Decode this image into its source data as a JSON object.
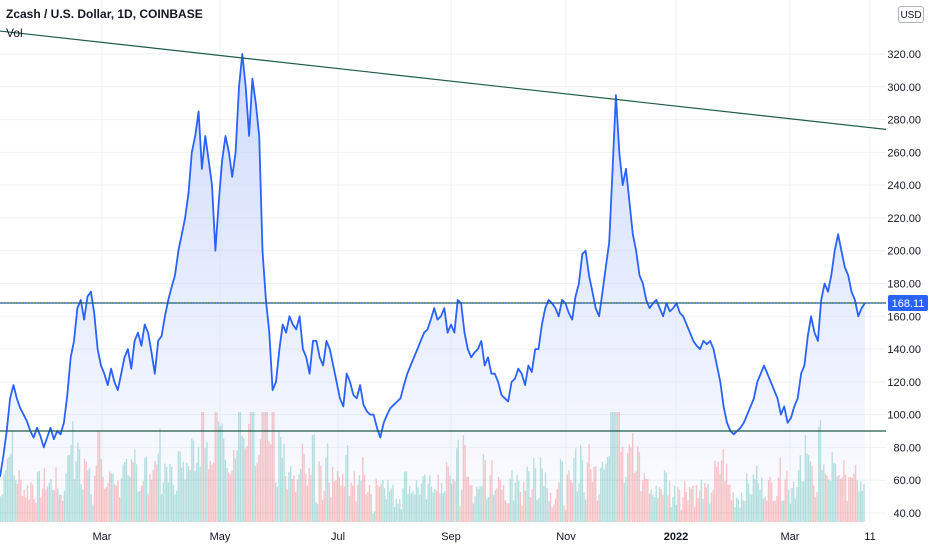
{
  "header": {
    "title": "Zcash / U.S. Dollar, 1D, COINBASE",
    "volume_label": "Vol",
    "currency_button": "USD"
  },
  "colors": {
    "price_line": "#2962ff",
    "area_fill_top": "#c9d6fb",
    "trendline": "#1f5c4a",
    "horizontal_line": "#1f5c4a",
    "last_price_badge": "#2962ff",
    "volume_up": "#26a69a",
    "volume_down": "#ef5350",
    "grid": "#eef0f3",
    "axis_text": "#131722"
  },
  "chart_data": {
    "type": "line",
    "title": "Zcash / U.S. Dollar, 1D, COINBASE",
    "xlabel": "",
    "ylabel": "",
    "ylim": [
      38,
      334
    ],
    "grid": true,
    "x_tick_labels": [
      "Mar",
      "May",
      "Jul",
      "Sep",
      "Nov",
      "2022",
      "Mar",
      "11"
    ],
    "y_tick_labels": [
      "40.00",
      "60.00",
      "80.00",
      "100.00",
      "120.00",
      "140.00",
      "160.00",
      "180.00",
      "200.00",
      "220.00",
      "240.00",
      "260.00",
      "280.00",
      "300.00",
      "320.00"
    ],
    "last_price": "168.11",
    "series": [
      {
        "values": [
          62,
          75,
          90,
          110,
          118,
          110,
          104,
          100,
          96,
          90,
          86,
          92,
          87,
          80,
          86,
          92,
          85,
          90,
          88,
          95,
          112,
          135,
          145,
          165,
          170,
          158,
          172,
          175,
          162,
          140,
          130,
          125,
          118,
          128,
          120,
          115,
          125,
          135,
          140,
          128,
          145,
          150,
          142,
          155,
          150,
          138,
          125,
          145,
          148,
          160,
          170,
          178,
          185,
          200,
          210,
          220,
          235,
          260,
          270,
          285,
          250,
          270,
          255,
          240,
          200,
          230,
          255,
          270,
          260,
          245,
          260,
          300,
          320,
          300,
          270,
          305,
          290,
          270,
          200,
          170,
          150,
          115,
          120,
          140,
          155,
          150,
          160,
          155,
          152,
          160,
          140,
          135,
          125,
          145,
          145,
          135,
          130,
          145,
          140,
          130,
          120,
          110,
          105,
          125,
          120,
          112,
          110,
          118,
          106,
          102,
          100,
          100,
          92,
          86,
          95,
          100,
          104,
          106,
          108,
          110,
          118,
          125,
          130,
          135,
          140,
          145,
          150,
          152,
          158,
          165,
          158,
          160,
          165,
          150,
          155,
          150,
          170,
          168,
          150,
          140,
          135,
          138,
          140,
          145,
          130,
          135,
          125,
          125,
          120,
          112,
          110,
          108,
          120,
          122,
          128,
          125,
          118,
          130,
          126,
          140,
          140,
          155,
          165,
          170,
          168,
          165,
          160,
          170,
          168,
          162,
          158,
          172,
          180,
          198,
          200,
          185,
          175,
          165,
          160,
          175,
          190,
          205,
          250,
          295,
          260,
          240,
          250,
          230,
          210,
          200,
          185,
          180,
          170,
          165,
          168,
          170,
          165,
          160,
          168,
          163,
          165,
          168,
          162,
          160,
          155,
          150,
          145,
          142,
          140,
          145,
          143,
          145,
          140,
          130,
          120,
          105,
          95,
          90,
          88,
          90,
          92,
          95,
          100,
          105,
          110,
          120,
          125,
          130,
          125,
          120,
          115,
          110,
          100,
          105,
          95,
          98,
          105,
          110,
          125,
          130,
          148,
          160,
          150,
          145,
          170,
          180,
          175,
          185,
          200,
          210,
          200,
          190,
          185,
          175,
          170,
          160,
          165,
          168.11
        ]
      }
    ]
  },
  "annotations": {
    "trendline_values": [
      334,
      274
    ],
    "support_level": 90,
    "resistance_level": 168.11
  }
}
